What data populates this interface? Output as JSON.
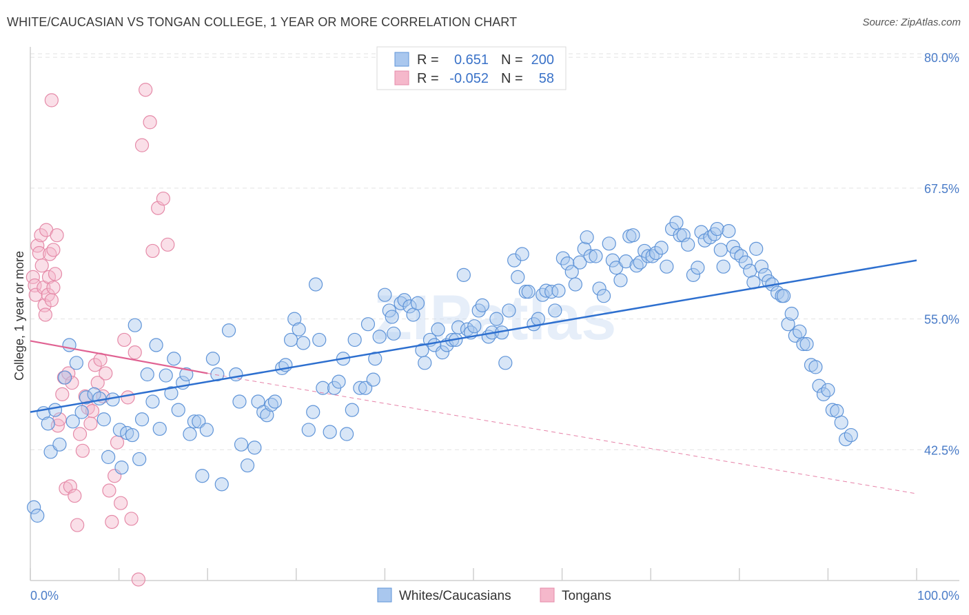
{
  "title": "WHITE/CAUCASIAN VS TONGAN COLLEGE, 1 YEAR OR MORE CORRELATION CHART",
  "source": "Source: ZipAtlas.com",
  "watermark": "ZIPatlas",
  "colors": {
    "blue_fill": "#a9c7ee",
    "blue_stroke": "#5f94d8",
    "blue_line": "#2d6fcf",
    "pink_fill": "#f5b8cb",
    "pink_stroke": "#e58aa8",
    "pink_line": "#e06292",
    "grid": "#e2e2e2",
    "tick_text": "#4a7cc8"
  },
  "legend": {
    "rows": [
      {
        "r_label": "R =",
        "r_value": "0.651",
        "n_label": "N =",
        "n_value": "200"
      },
      {
        "r_label": "R =",
        "r_value": "-0.052",
        "n_label": "N =",
        "n_value": "58"
      }
    ]
  },
  "bottom_legend": [
    "Whites/Caucasians",
    "Tongans"
  ],
  "chart_data": {
    "type": "scatter",
    "title": "WHITE/CAUCASIAN VS TONGAN COLLEGE, 1 YEAR OR MORE CORRELATION CHART",
    "xlabel": "",
    "ylabel": "College, 1 year or more",
    "x_ticks": [
      "0.0%",
      "100.0%"
    ],
    "y_ticks": [
      "42.5%",
      "55.0%",
      "67.5%",
      "80.0%"
    ],
    "xlim": [
      0,
      100
    ],
    "ylim": [
      30.0,
      81.0
    ],
    "grid": true,
    "legend_position": "top-center",
    "series": [
      {
        "name": "Whites/Caucasians",
        "R": 0.651,
        "N": 200,
        "trend": {
          "x": [
            0,
            100
          ],
          "y": [
            46.1,
            60.6
          ]
        },
        "points": [
          [
            0.4,
            37.0
          ],
          [
            0.8,
            36.2
          ],
          [
            1.5,
            46.0
          ],
          [
            2.0,
            45.0
          ],
          [
            2.3,
            42.3
          ],
          [
            2.8,
            46.3
          ],
          [
            3.3,
            43.0
          ],
          [
            3.9,
            49.4
          ],
          [
            4.4,
            52.5
          ],
          [
            4.8,
            45.2
          ],
          [
            5.2,
            50.8
          ],
          [
            5.8,
            46.1
          ],
          [
            6.3,
            47.5
          ],
          [
            7.2,
            47.8
          ],
          [
            7.8,
            47.4
          ],
          [
            8.3,
            45.4
          ],
          [
            8.8,
            41.8
          ],
          [
            9.3,
            47.3
          ],
          [
            10.1,
            44.4
          ],
          [
            10.3,
            40.8
          ],
          [
            10.9,
            44.1
          ],
          [
            11.5,
            43.9
          ],
          [
            11.8,
            54.4
          ],
          [
            12.3,
            41.6
          ],
          [
            12.6,
            45.4
          ],
          [
            13.2,
            49.7
          ],
          [
            13.8,
            47.1
          ],
          [
            14.2,
            52.5
          ],
          [
            14.6,
            44.5
          ],
          [
            15.3,
            49.6
          ],
          [
            15.9,
            47.9
          ],
          [
            16.2,
            51.2
          ],
          [
            16.7,
            46.3
          ],
          [
            17.2,
            48.9
          ],
          [
            17.6,
            49.7
          ],
          [
            18.0,
            44.0
          ],
          [
            18.5,
            45.2
          ],
          [
            19.0,
            45.2
          ],
          [
            19.4,
            40.0
          ],
          [
            19.9,
            44.4
          ],
          [
            20.6,
            51.2
          ],
          [
            21.1,
            49.7
          ],
          [
            21.6,
            39.2
          ],
          [
            22.4,
            53.9
          ],
          [
            23.2,
            49.7
          ],
          [
            23.6,
            47.1
          ],
          [
            23.8,
            43.0
          ],
          [
            24.5,
            41.0
          ],
          [
            25.3,
            42.7
          ],
          [
            25.7,
            47.1
          ],
          [
            26.3,
            46.1
          ],
          [
            26.7,
            45.8
          ],
          [
            27.2,
            46.8
          ],
          [
            27.6,
            47.1
          ],
          [
            28.4,
            50.3
          ],
          [
            28.8,
            50.6
          ],
          [
            29.4,
            53.0
          ],
          [
            29.8,
            55.0
          ],
          [
            30.3,
            54.0
          ],
          [
            30.8,
            52.7
          ],
          [
            31.4,
            44.4
          ],
          [
            31.9,
            46.1
          ],
          [
            32.2,
            58.3
          ],
          [
            32.6,
            53.0
          ],
          [
            33.0,
            48.4
          ],
          [
            33.8,
            44.2
          ],
          [
            34.3,
            48.4
          ],
          [
            34.8,
            49.0
          ],
          [
            35.3,
            51.2
          ],
          [
            35.7,
            44.0
          ],
          [
            36.3,
            46.3
          ],
          [
            36.6,
            53.0
          ],
          [
            37.2,
            48.4
          ],
          [
            37.8,
            48.4
          ],
          [
            38.1,
            54.5
          ],
          [
            38.7,
            49.2
          ],
          [
            38.9,
            51.2
          ],
          [
            39.4,
            53.3
          ],
          [
            40.0,
            57.3
          ],
          [
            40.5,
            55.8
          ],
          [
            40.8,
            55.2
          ],
          [
            41.0,
            53.6
          ],
          [
            41.8,
            56.5
          ],
          [
            42.2,
            56.8
          ],
          [
            42.8,
            56.2
          ],
          [
            43.2,
            55.4
          ],
          [
            43.7,
            56.5
          ],
          [
            44.2,
            52.0
          ],
          [
            44.5,
            50.8
          ],
          [
            45.1,
            53.0
          ],
          [
            45.6,
            52.5
          ],
          [
            46.0,
            54.0
          ],
          [
            46.5,
            51.8
          ],
          [
            47.0,
            52.5
          ],
          [
            47.6,
            53.0
          ],
          [
            48.0,
            53.0
          ],
          [
            48.3,
            54.2
          ],
          [
            48.9,
            59.2
          ],
          [
            49.3,
            54.0
          ],
          [
            49.7,
            53.7
          ],
          [
            50.1,
            54.3
          ],
          [
            50.6,
            55.8
          ],
          [
            51.0,
            56.3
          ],
          [
            51.7,
            53.3
          ],
          [
            52.1,
            53.7
          ],
          [
            52.6,
            55.0
          ],
          [
            53.2,
            53.7
          ],
          [
            53.6,
            50.8
          ],
          [
            54.0,
            55.8
          ],
          [
            54.6,
            60.6
          ],
          [
            55.0,
            59.0
          ],
          [
            55.5,
            61.2
          ],
          [
            55.9,
            57.6
          ],
          [
            56.2,
            57.6
          ],
          [
            56.8,
            54.5
          ],
          [
            57.3,
            55.0
          ],
          [
            57.8,
            57.3
          ],
          [
            58.2,
            57.7
          ],
          [
            58.8,
            57.6
          ],
          [
            59.2,
            55.8
          ],
          [
            59.6,
            57.7
          ],
          [
            60.1,
            60.8
          ],
          [
            60.6,
            60.3
          ],
          [
            61.1,
            59.5
          ],
          [
            61.5,
            58.3
          ],
          [
            62.0,
            60.4
          ],
          [
            62.5,
            61.7
          ],
          [
            62.8,
            62.8
          ],
          [
            63.2,
            61.0
          ],
          [
            63.8,
            61.0
          ],
          [
            64.2,
            57.9
          ],
          [
            64.7,
            57.2
          ],
          [
            65.3,
            62.2
          ],
          [
            65.7,
            60.6
          ],
          [
            66.1,
            59.9
          ],
          [
            66.6,
            58.7
          ],
          [
            67.2,
            60.5
          ],
          [
            67.6,
            62.9
          ],
          [
            68.0,
            63.0
          ],
          [
            68.4,
            60.1
          ],
          [
            68.8,
            60.4
          ],
          [
            69.3,
            61.5
          ],
          [
            69.7,
            61.0
          ],
          [
            70.2,
            61.0
          ],
          [
            70.6,
            61.3
          ],
          [
            71.2,
            61.8
          ],
          [
            71.8,
            60.0
          ],
          [
            72.4,
            63.6
          ],
          [
            72.9,
            64.2
          ],
          [
            73.3,
            63.0
          ],
          [
            73.7,
            63.0
          ],
          [
            74.2,
            62.1
          ],
          [
            74.8,
            59.2
          ],
          [
            75.3,
            59.9
          ],
          [
            75.7,
            63.3
          ],
          [
            76.1,
            62.5
          ],
          [
            76.7,
            62.8
          ],
          [
            77.2,
            63.1
          ],
          [
            77.5,
            63.6
          ],
          [
            77.9,
            61.6
          ],
          [
            78.2,
            60.0
          ],
          [
            78.8,
            63.4
          ],
          [
            79.3,
            61.9
          ],
          [
            79.7,
            61.3
          ],
          [
            80.2,
            61.0
          ],
          [
            80.7,
            60.4
          ],
          [
            81.2,
            59.6
          ],
          [
            81.6,
            58.5
          ],
          [
            81.9,
            61.7
          ],
          [
            82.5,
            60.0
          ],
          [
            82.9,
            59.2
          ],
          [
            83.3,
            58.6
          ],
          [
            83.7,
            58.3
          ],
          [
            84.3,
            57.5
          ],
          [
            84.8,
            57.2
          ],
          [
            85.0,
            57.2
          ],
          [
            85.5,
            54.5
          ],
          [
            85.9,
            55.5
          ],
          [
            86.3,
            53.4
          ],
          [
            86.8,
            53.8
          ],
          [
            87.2,
            52.6
          ],
          [
            87.6,
            52.6
          ],
          [
            88.1,
            50.6
          ],
          [
            88.6,
            50.4
          ],
          [
            89.0,
            48.6
          ],
          [
            89.5,
            47.8
          ],
          [
            90.0,
            48.2
          ],
          [
            90.5,
            46.3
          ],
          [
            91.0,
            46.2
          ],
          [
            91.5,
            45.1
          ],
          [
            92.0,
            43.5
          ],
          [
            92.6,
            43.9
          ]
        ]
      },
      {
        "name": "Tongans",
        "R": -0.052,
        "N": 58,
        "trend": {
          "x": [
            0,
            20
          ],
          "y": [
            52.9,
            49.8
          ]
        },
        "trend_extension": {
          "x": [
            20,
            100
          ],
          "y": [
            49.8,
            38.3
          ]
        },
        "points": [
          [
            0.3,
            59.0
          ],
          [
            0.5,
            58.2
          ],
          [
            0.6,
            57.3
          ],
          [
            0.8,
            62.0
          ],
          [
            1.0,
            61.3
          ],
          [
            1.2,
            63.0
          ],
          [
            1.3,
            60.1
          ],
          [
            1.5,
            58.0
          ],
          [
            1.6,
            56.3
          ],
          [
            1.7,
            55.4
          ],
          [
            1.8,
            63.5
          ],
          [
            2.0,
            57.3
          ],
          [
            2.1,
            59.0
          ],
          [
            2.2,
            61.2
          ],
          [
            2.4,
            56.8
          ],
          [
            2.6,
            58.0
          ],
          [
            2.8,
            59.3
          ],
          [
            3.0,
            63.0
          ],
          [
            3.1,
            44.8
          ],
          [
            3.3,
            45.4
          ],
          [
            3.6,
            47.8
          ],
          [
            3.8,
            49.4
          ],
          [
            4.0,
            38.8
          ],
          [
            4.3,
            49.8
          ],
          [
            4.5,
            39.0
          ],
          [
            4.7,
            48.9
          ],
          [
            5.0,
            38.1
          ],
          [
            5.3,
            35.3
          ],
          [
            5.6,
            44.0
          ],
          [
            5.9,
            42.4
          ],
          [
            6.2,
            47.6
          ],
          [
            6.5,
            46.5
          ],
          [
            6.8,
            45.0
          ],
          [
            7.0,
            46.2
          ],
          [
            7.3,
            50.6
          ],
          [
            7.6,
            48.9
          ],
          [
            7.9,
            51.1
          ],
          [
            8.2,
            47.6
          ],
          [
            8.5,
            49.8
          ],
          [
            8.9,
            38.6
          ],
          [
            9.2,
            35.6
          ],
          [
            9.5,
            40.0
          ],
          [
            9.8,
            43.2
          ],
          [
            10.2,
            37.4
          ],
          [
            10.6,
            53.0
          ],
          [
            11.0,
            47.5
          ],
          [
            11.4,
            35.9
          ],
          [
            11.8,
            51.8
          ],
          [
            12.2,
            30.1
          ],
          [
            12.6,
            71.6
          ],
          [
            13.0,
            76.9
          ],
          [
            13.5,
            73.8
          ],
          [
            13.8,
            61.5
          ],
          [
            14.4,
            65.6
          ],
          [
            15.0,
            66.5
          ],
          [
            15.5,
            62.1
          ],
          [
            2.4,
            75.9
          ],
          [
            2.6,
            61.6
          ]
        ]
      }
    ]
  }
}
